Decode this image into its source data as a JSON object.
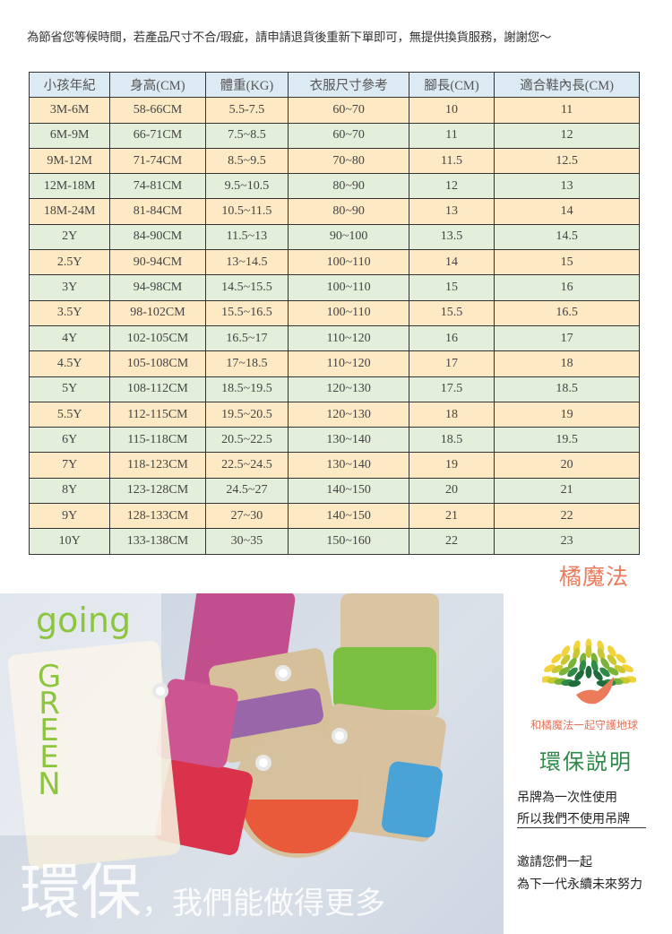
{
  "notice": "為節省您等候時間，若產品尺寸不合/瑕疵，請申請退貨後重新下單即可，無提供換貨服務，謝謝您～",
  "table": {
    "headers": [
      "小孩年紀",
      "身高(CM)",
      "體重(KG)",
      "衣服尺寸參考",
      "腳長(CM)",
      "適合鞋內長(CM)"
    ],
    "rows": [
      [
        "3M-6M",
        "58-66CM",
        "5.5-7.5",
        "60~70",
        "10",
        "11"
      ],
      [
        "6M-9M",
        "66-71CM",
        "7.5~8.5",
        "60~70",
        "11",
        "12"
      ],
      [
        "9M-12M",
        "71-74CM",
        "8.5~9.5",
        "70~80",
        "11.5",
        "12.5"
      ],
      [
        "12M-18M",
        "74-81CM",
        "9.5~10.5",
        "80~90",
        "12",
        "13"
      ],
      [
        "18M-24M",
        "81-84CM",
        "10.5~11.5",
        "80~90",
        "13",
        "14"
      ],
      [
        "2Y",
        "84-90CM",
        "11.5~13",
        "90~100",
        "13.5",
        "14.5"
      ],
      [
        "2.5Y",
        "90-94CM",
        "13~14.5",
        "100~110",
        "14",
        "15"
      ],
      [
        "3Y",
        "94-98CM",
        "14.5~15.5",
        "100~110",
        "15",
        "16"
      ],
      [
        "3.5Y",
        "98-102CM",
        "15.5~16.5",
        "100~110",
        "15.5",
        "16.5"
      ],
      [
        "4Y",
        "102-105CM",
        "16.5~17",
        "110~120",
        "16",
        "17"
      ],
      [
        "4.5Y",
        "105-108CM",
        "17~18.5",
        "110~120",
        "17",
        "18"
      ],
      [
        "5Y",
        "108-112CM",
        "18.5~19.5",
        "120~130",
        "17.5",
        "18.5"
      ],
      [
        "5.5Y",
        "112-115CM",
        "19.5~20.5",
        "120~130",
        "18",
        "19"
      ],
      [
        "6Y",
        "115-118CM",
        "20.5~22.5",
        "130~140",
        "18.5",
        "19.5"
      ],
      [
        "7Y",
        "118-123CM",
        "22.5~24.5",
        "130~140",
        "19",
        "20"
      ],
      [
        "8Y",
        "123-128CM",
        "24.5~27",
        "140~150",
        "20",
        "21"
      ],
      [
        "9Y",
        "128-133CM",
        "27~30",
        "140~150",
        "21",
        "22"
      ],
      [
        "10Y",
        "133-138CM",
        "30~35",
        "150~160",
        "22",
        "23"
      ]
    ]
  },
  "brand": "橘魔法",
  "photo": {
    "going": "going",
    "green": [
      "G",
      "R",
      "E",
      "E",
      "N"
    ],
    "big": "環保",
    "tagline": "，我們能做得更多"
  },
  "eco": {
    "slogan": "和橘魔法一起守護地球",
    "title": "環保説明",
    "lines": [
      "吊牌為一次性使用",
      "所以我們不使用吊牌",
      "邀請您們一起",
      "為下一代永續未來努力"
    ]
  },
  "colors": {
    "row_yellow": "#fde9c3",
    "row_green": "#e3efdb",
    "header": "#dceaf4",
    "brand": "#ec7b5c",
    "eco_green": "#2f8a4a"
  }
}
